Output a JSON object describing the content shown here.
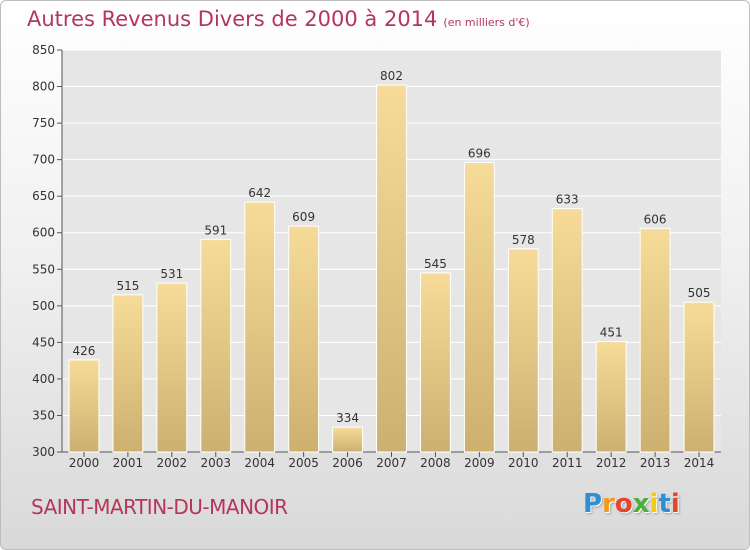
{
  "chart_data": {
    "type": "bar",
    "title": "Autres Revenus Divers de 2000 à 2014",
    "unit_note": "(en milliers d'€)",
    "categories": [
      "2000",
      "2001",
      "2002",
      "2003",
      "2004",
      "2005",
      "2006",
      "2007",
      "2008",
      "2009",
      "2010",
      "2011",
      "2012",
      "2013",
      "2014"
    ],
    "values": [
      426,
      515,
      531,
      591,
      642,
      609,
      334,
      802,
      545,
      696,
      578,
      633,
      451,
      606,
      505
    ],
    "ylim": [
      300,
      850
    ],
    "yticks": [
      300,
      350,
      400,
      450,
      500,
      550,
      600,
      650,
      700,
      750,
      800,
      850
    ],
    "grid": true,
    "bar_color": "#e9cf8a",
    "bar_color_light": "#f6dc98",
    "bar_color_dark": "#cdb070"
  },
  "footer": {
    "place": "SAINT-MARTIN-DU-MANOIR",
    "logo_letters": [
      "P",
      "r",
      "o",
      "x",
      "i",
      "t",
      "i"
    ],
    "logo_colors": [
      "#2f8fd2",
      "#f29a1b",
      "#e2462c",
      "#4caf3a",
      "#f2c81b",
      "#2f8fd2",
      "#e2462c"
    ]
  },
  "colors": {
    "title": "#b3365b",
    "grid": "#ffffff",
    "axis": "#555555"
  }
}
